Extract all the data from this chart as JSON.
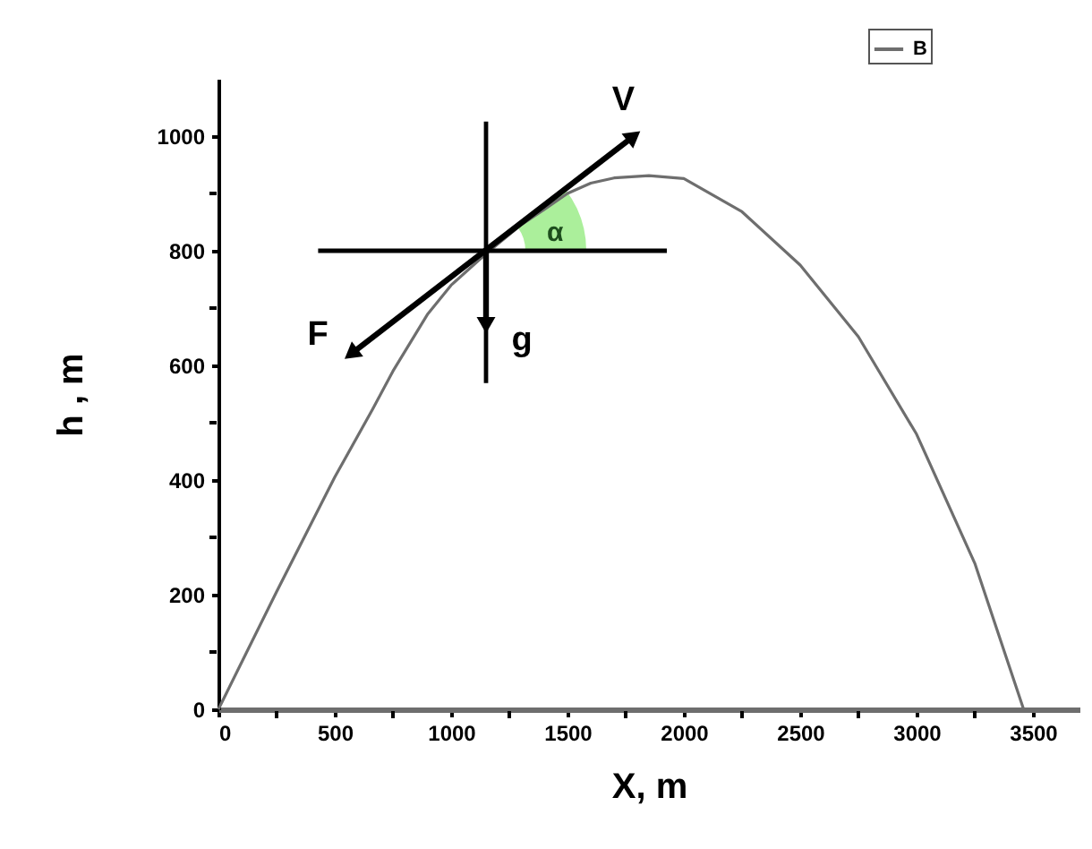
{
  "chart_data": {
    "type": "line",
    "xlabel": "X, m",
    "ylabel": "h , m",
    "series": [
      {
        "name": "B",
        "color": "#6e6e6e",
        "x": [
          0,
          250,
          500,
          662,
          750,
          900,
          1000,
          1150,
          1300,
          1400,
          1500,
          1600,
          1700,
          1850,
          2000,
          2250,
          2500,
          2750,
          3000,
          3250,
          3460
        ],
        "values": [
          0,
          205,
          405,
          523,
          590,
          690,
          740,
          795,
          845,
          872,
          900,
          918,
          927,
          931,
          926,
          868,
          775,
          650,
          480,
          255,
          0
        ]
      },
      {
        "color": "#000000",
        "marker": "triangle",
        "x": [
          570,
          1785
        ],
        "values": [
          620,
          1000
        ]
      },
      {
        "color": "#000000",
        "marker": "triangle",
        "x": [
          1150,
          1150
        ],
        "values": [
          800,
          670
        ]
      }
    ],
    "xlim": [
      0,
      3700
    ],
    "ylim": [
      0,
      1100
    ],
    "xticks": [
      0,
      {
        "value": 250,
        "label": null
      },
      500,
      {
        "value": 750,
        "label": null
      },
      1000,
      {
        "value": 1250,
        "label": null
      },
      1500,
      {
        "value": 1750,
        "label": null
      },
      2000,
      {
        "value": 2250,
        "label": null
      },
      2500,
      {
        "value": 2750,
        "label": null
      },
      3000,
      {
        "value": 3250,
        "label": null
      },
      3500
    ],
    "yticks": [
      0,
      {
        "value": 100,
        "label": null
      },
      200,
      {
        "value": 300,
        "label": null
      },
      400,
      {
        "value": 500,
        "label": null
      },
      600,
      {
        "value": 700,
        "label": null
      },
      800,
      {
        "value": 900,
        "label": null
      },
      1000
    ],
    "ref_lines": [
      {
        "axis": "x",
        "value": 1150,
        "color": "#000000"
      },
      {
        "axis": "y",
        "value": 800,
        "color": "#000000"
      }
    ],
    "annotations": [
      {
        "text": "V",
        "x": 1785,
        "y": 1000
      },
      {
        "text": "F",
        "x": 570,
        "y": 620
      },
      {
        "text": "g",
        "x": 1150,
        "y": 670
      },
      "α"
    ],
    "legend": "top right",
    "grid": false
  }
}
